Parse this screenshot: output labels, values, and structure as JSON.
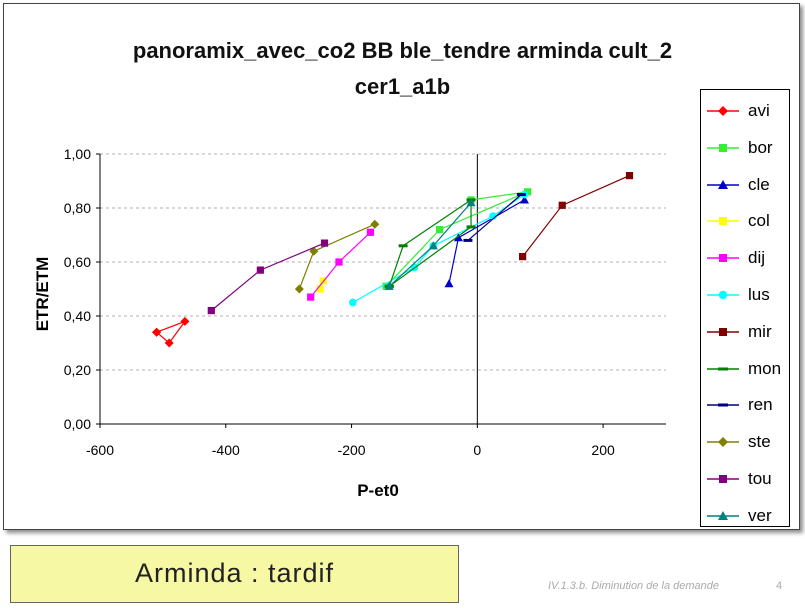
{
  "slide": {
    "caption": "Arminda : tardif",
    "footer": "IV.1.3.b. Diminution de la demande",
    "page_number": "4"
  },
  "chart_data": {
    "type": "line",
    "title": "panoramix_avec_co2 BB ble_tendre arminda cult_2",
    "subtitle": "cer1_a1b",
    "xlabel": "P-et0",
    "ylabel": "ETR/ETM",
    "xlim": [
      -600,
      300
    ],
    "ylim": [
      0,
      1.0
    ],
    "x_ticks": [
      "-600",
      "-400",
      "-200",
      "0",
      "200"
    ],
    "y_ticks": [
      "0,00",
      "0,20",
      "0,40",
      "0,60",
      "0,80",
      "1,00"
    ],
    "grid": "horizontal dashed",
    "legend": "right",
    "series": [
      {
        "name": "avi",
        "color": "#ff0000",
        "marker": "diamond",
        "points": [
          [
            -510,
            0.34
          ],
          [
            -465,
            0.38
          ],
          [
            -490,
            0.3
          ],
          [
            -510,
            0.34
          ]
        ]
      },
      {
        "name": "bor",
        "color": "#33ee33",
        "marker": "square",
        "points": [
          [
            -145,
            0.51
          ],
          [
            -60,
            0.72
          ],
          [
            80,
            0.86
          ],
          [
            -10,
            0.83
          ]
        ]
      },
      {
        "name": "cle",
        "color": "#0000cc",
        "marker": "triangle",
        "points": [
          [
            -45,
            0.52
          ],
          [
            -30,
            0.69
          ],
          [
            75,
            0.83
          ]
        ]
      },
      {
        "name": "col",
        "color": "#ffff00",
        "marker": "square",
        "points": [
          [
            -250,
            0.5
          ],
          [
            -245,
            0.53
          ]
        ]
      },
      {
        "name": "dij",
        "color": "#ff00ff",
        "marker": "square",
        "points": [
          [
            -265,
            0.47
          ],
          [
            -220,
            0.6
          ],
          [
            -170,
            0.71
          ]
        ]
      },
      {
        "name": "lus",
        "color": "#00ffff",
        "marker": "circle",
        "points": [
          [
            -198,
            0.45
          ],
          [
            -100,
            0.58
          ],
          [
            -70,
            0.66
          ],
          [
            25,
            0.77
          ],
          [
            75,
            0.85
          ]
        ]
      },
      {
        "name": "mir",
        "color": "#800000",
        "marker": "square",
        "points": [
          [
            72,
            0.62
          ],
          [
            135,
            0.81
          ],
          [
            242,
            0.92
          ]
        ]
      },
      {
        "name": "mon",
        "color": "#008000",
        "marker": "dash",
        "points": [
          [
            -140,
            0.51
          ],
          [
            -118,
            0.66
          ],
          [
            -10,
            0.83
          ],
          [
            -10,
            0.73
          ],
          [
            -140,
            0.51
          ]
        ]
      },
      {
        "name": "ren",
        "color": "#000080",
        "marker": "dash",
        "points": [
          [
            -15,
            0.68
          ],
          [
            70,
            0.85
          ]
        ]
      },
      {
        "name": "ste",
        "color": "#808000",
        "marker": "diamond",
        "points": [
          [
            -283,
            0.5
          ],
          [
            -260,
            0.64
          ],
          [
            -163,
            0.74
          ]
        ]
      },
      {
        "name": "tou",
        "color": "#800080",
        "marker": "square",
        "points": [
          [
            -423,
            0.42
          ],
          [
            -345,
            0.57
          ],
          [
            -243,
            0.67
          ]
        ]
      },
      {
        "name": "ver",
        "color": "#008080",
        "marker": "triangle",
        "points": [
          [
            -140,
            0.51
          ],
          [
            -70,
            0.66
          ],
          [
            -10,
            0.82
          ]
        ]
      }
    ]
  }
}
